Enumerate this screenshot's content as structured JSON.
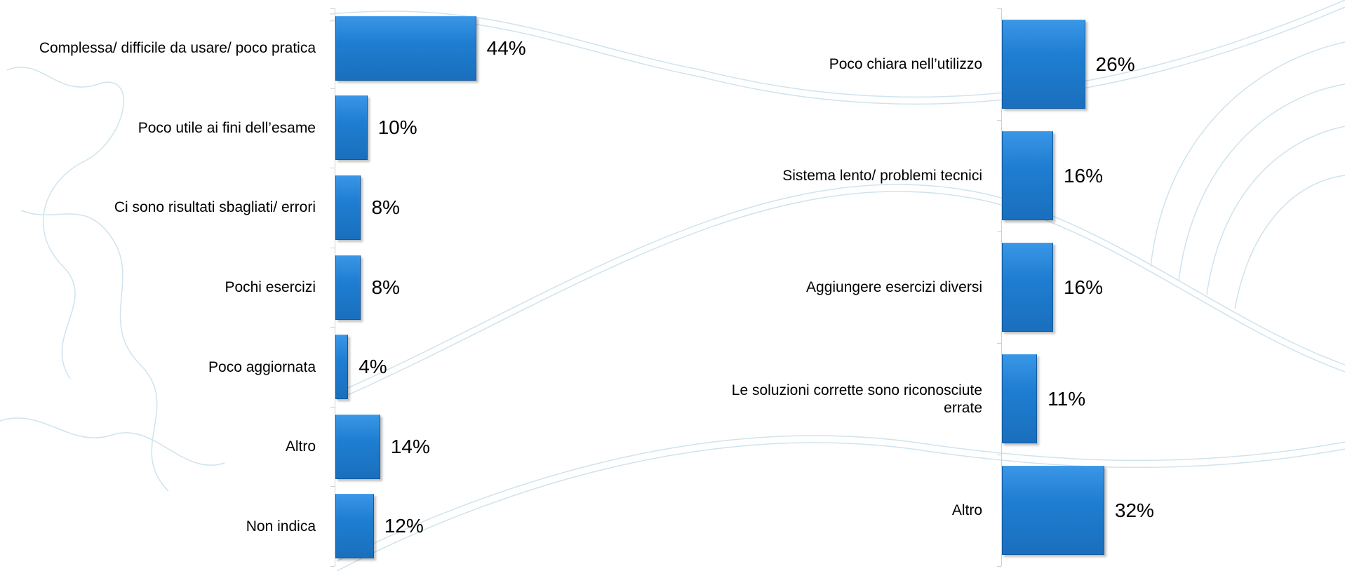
{
  "chart_data": [
    {
      "type": "bar",
      "orientation": "horizontal",
      "color": "#1f7ed2",
      "categories": [
        "Complessa/ difficile da usare/ poco pratica",
        "Poco utile ai fini dell’esame",
        "Ci sono risultati sbagliati/ errori",
        "Pochi esercizi",
        "Poco aggiornata",
        "Altro",
        "Non indica"
      ],
      "values": [
        44,
        10,
        8,
        8,
        4,
        14,
        12
      ],
      "value_labels": [
        "44%",
        "10%",
        "8%",
        "8%",
        "4%",
        "14%",
        "12%"
      ]
    },
    {
      "type": "bar",
      "orientation": "horizontal",
      "color": "#1f7ed2",
      "categories": [
        "Poco chiara nell’utilizzo",
        "Sistema lento/ problemi tecnici",
        "Aggiungere esercizi diversi",
        "Le soluzioni corrette sono riconosciute errate",
        "Altro"
      ],
      "values": [
        26,
        16,
        16,
        11,
        32
      ],
      "value_labels": [
        "26%",
        "16%",
        "16%",
        "11%",
        "32%"
      ]
    }
  ]
}
